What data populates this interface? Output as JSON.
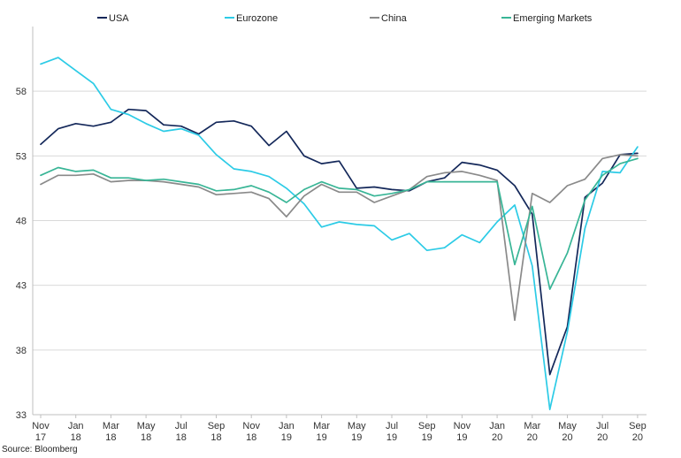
{
  "source_text": "Source: Bloomberg",
  "chart_data": {
    "type": "line",
    "ylim": [
      33,
      63
    ],
    "yticks": [
      33,
      38,
      43,
      48,
      53,
      58
    ],
    "grid": true,
    "legend_position": "top",
    "x_tick_labels": [
      [
        "Nov",
        "17"
      ],
      [
        "Jan",
        "18"
      ],
      [
        "Mar",
        "18"
      ],
      [
        "May",
        "18"
      ],
      [
        "Jul",
        "18"
      ],
      [
        "Sep",
        "18"
      ],
      [
        "Nov",
        "18"
      ],
      [
        "Jan",
        "19"
      ],
      [
        "Mar",
        "19"
      ],
      [
        "May",
        "19"
      ],
      [
        "Jul",
        "19"
      ],
      [
        "Sep",
        "19"
      ],
      [
        "Nov",
        "19"
      ],
      [
        "Jan",
        "20"
      ],
      [
        "Mar",
        "20"
      ],
      [
        "May",
        "20"
      ],
      [
        "Jul",
        "20"
      ],
      [
        "Sep",
        "20"
      ]
    ],
    "x": [
      "2017-11",
      "2017-12",
      "2018-01",
      "2018-02",
      "2018-03",
      "2018-04",
      "2018-05",
      "2018-06",
      "2018-07",
      "2018-08",
      "2018-09",
      "2018-10",
      "2018-11",
      "2018-12",
      "2019-01",
      "2019-02",
      "2019-03",
      "2019-04",
      "2019-05",
      "2019-06",
      "2019-07",
      "2019-08",
      "2019-09",
      "2019-10",
      "2019-11",
      "2019-12",
      "2020-01",
      "2020-02",
      "2020-03",
      "2020-04",
      "2020-05",
      "2020-06",
      "2020-07",
      "2020-08",
      "2020-09"
    ],
    "series": [
      {
        "name": "USA",
        "color": "#14285a",
        "values": [
          53.9,
          55.1,
          55.5,
          55.3,
          55.6,
          56.6,
          56.5,
          55.4,
          55.3,
          54.7,
          55.6,
          55.7,
          55.3,
          53.8,
          54.9,
          53.0,
          52.4,
          52.6,
          50.5,
          50.6,
          50.4,
          50.3,
          51.0,
          51.3,
          52.5,
          52.3,
          51.9,
          50.7,
          48.5,
          36.1,
          39.8,
          49.8,
          50.9,
          53.1,
          53.2
        ]
      },
      {
        "name": "Eurozone",
        "color": "#2ccbe6",
        "values": [
          60.1,
          60.6,
          59.6,
          58.6,
          56.6,
          56.2,
          55.5,
          54.9,
          55.1,
          54.6,
          53.1,
          52.0,
          51.8,
          51.4,
          50.5,
          49.3,
          47.5,
          47.9,
          47.7,
          47.6,
          46.5,
          47.0,
          45.7,
          45.9,
          46.9,
          46.3,
          47.9,
          49.2,
          44.5,
          33.4,
          39.4,
          47.4,
          51.8,
          51.7,
          53.7
        ]
      },
      {
        "name": "China",
        "color": "#8a8a8a",
        "values": [
          50.8,
          51.5,
          51.5,
          51.6,
          51.0,
          51.1,
          51.1,
          51.0,
          50.8,
          50.6,
          50.0,
          50.1,
          50.2,
          49.7,
          48.3,
          49.9,
          50.8,
          50.2,
          50.2,
          49.4,
          49.9,
          50.4,
          51.4,
          51.7,
          51.8,
          51.5,
          51.1,
          40.3,
          50.1,
          49.4,
          50.7,
          51.2,
          52.8,
          53.1,
          53.0
        ]
      },
      {
        "name": "Emerging Markets",
        "color": "#38b596",
        "values": [
          51.5,
          52.1,
          51.8,
          51.9,
          51.3,
          51.3,
          51.1,
          51.2,
          51.0,
          50.8,
          50.3,
          50.4,
          50.7,
          50.2,
          49.4,
          50.4,
          51.0,
          50.5,
          50.4,
          49.9,
          50.1,
          50.4,
          51.0,
          51.0,
          51.0,
          51.0,
          51.0,
          44.6,
          49.1,
          42.7,
          45.5,
          49.6,
          51.5,
          52.4,
          52.8
        ]
      }
    ]
  }
}
